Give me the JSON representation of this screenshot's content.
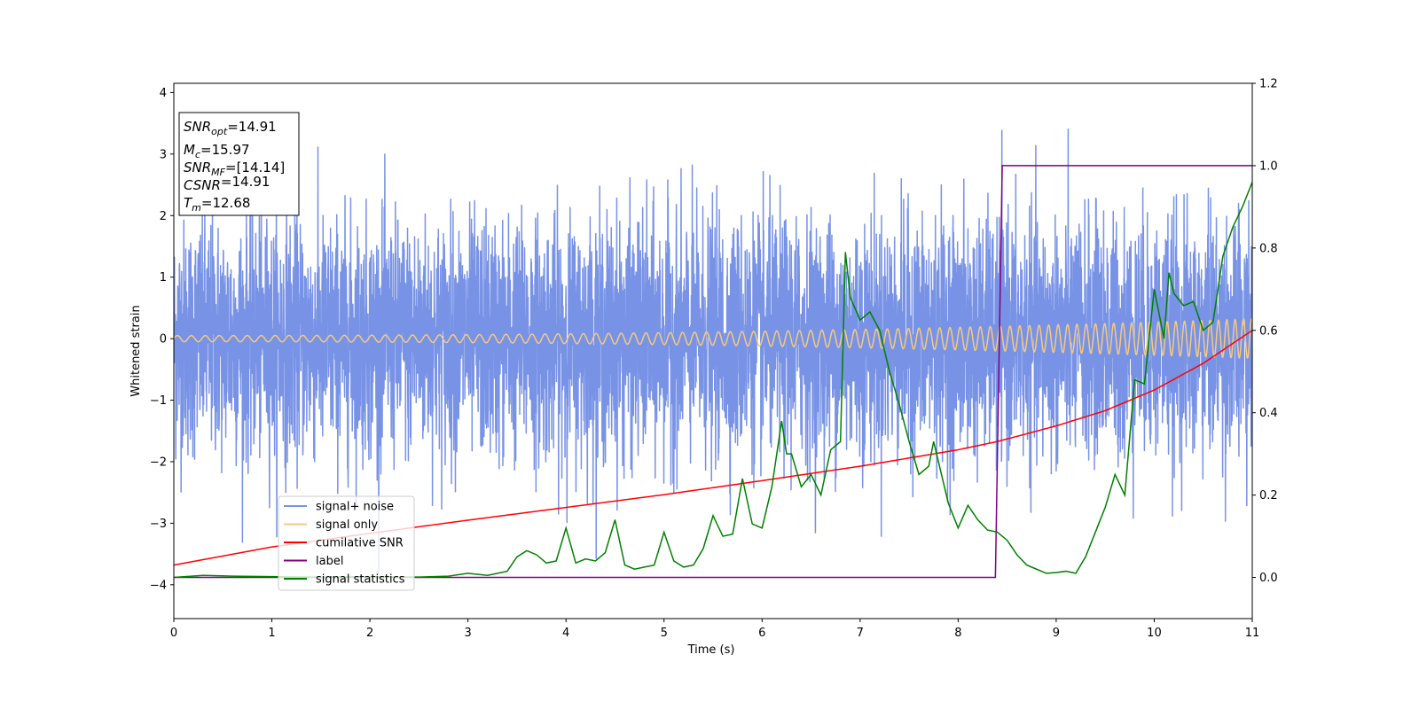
{
  "chart_data": {
    "type": "line",
    "xlabel": "Time (s)",
    "ylabel": "Whitened strain",
    "xlim": [
      0,
      11
    ],
    "ylim": [
      -4.55,
      4.15
    ],
    "ylim_right": [
      -0.1,
      1.2
    ],
    "x_ticks": [
      "0",
      "1",
      "2",
      "3",
      "4",
      "5",
      "6",
      "7",
      "8",
      "9",
      "10",
      "11"
    ],
    "y_ticks": [
      "4",
      "3",
      "2",
      "1",
      "0",
      "−1",
      "−2",
      "−3",
      "−4"
    ],
    "y_ticks_right": [
      "1.2",
      "1.0",
      "0.8",
      "0.6",
      "0.4",
      "0.2",
      "0.0"
    ],
    "grid": false,
    "legend_position": "lower-left",
    "annotation": {
      "lines": [
        {
          "base": "SNR",
          "sub": "opt",
          "value": "=14.91"
        },
        {
          "base": "M",
          "sub": "c",
          "value": "=15.97"
        },
        {
          "base": "SNR",
          "sub": "MF",
          "value": "=[14.14]"
        },
        {
          "base": "CSNR",
          "sub": "",
          "value": "=14.91"
        },
        {
          "base": "T",
          "sub": "m",
          "value": "=12.68"
        }
      ]
    },
    "series": [
      {
        "name": "signal+ noise",
        "color": "#7893e6",
        "axis": "left",
        "kind": "noise",
        "approx_std": 0.95,
        "approx_range": [
          -4.15,
          3.75
        ]
      },
      {
        "name": "signal only",
        "color": "#f6c97d",
        "axis": "left",
        "kind": "chirp",
        "amplitude_start": 0.05,
        "amplitude_end": 0.32
      },
      {
        "name": "cumilative SNR",
        "color": "#ff0000",
        "axis": "right",
        "x": [
          0,
          1,
          2,
          3,
          4,
          5,
          6,
          7,
          8,
          8.4,
          9,
          9.5,
          10,
          10.5,
          11
        ],
        "y": [
          0.03,
          0.074,
          0.107,
          0.139,
          0.17,
          0.201,
          0.235,
          0.27,
          0.31,
          0.33,
          0.368,
          0.405,
          0.455,
          0.52,
          0.6
        ]
      },
      {
        "name": "label",
        "color": "#800080",
        "axis": "right",
        "x": [
          0,
          8.38,
          8.45,
          11
        ],
        "y": [
          0,
          0,
          1,
          1
        ]
      },
      {
        "name": "signal statistics",
        "color": "#008000",
        "axis": "right",
        "x": [
          0,
          0.3,
          0.6,
          1,
          1.5,
          2,
          2.5,
          2.8,
          3,
          3.2,
          3.4,
          3.5,
          3.6,
          3.7,
          3.8,
          3.9,
          4,
          4.1,
          4.2,
          4.3,
          4.4,
          4.5,
          4.6,
          4.7,
          4.8,
          4.9,
          5,
          5.1,
          5.2,
          5.3,
          5.4,
          5.5,
          5.6,
          5.7,
          5.8,
          5.9,
          6,
          6.1,
          6.2,
          6.25,
          6.3,
          6.4,
          6.5,
          6.6,
          6.7,
          6.8,
          6.85,
          6.9,
          7,
          7.1,
          7.2,
          7.3,
          7.4,
          7.5,
          7.6,
          7.7,
          7.75,
          7.8,
          7.9,
          8,
          8.1,
          8.2,
          8.3,
          8.4,
          8.5,
          8.6,
          8.7,
          8.8,
          8.9,
          9,
          9.1,
          9.2,
          9.3,
          9.4,
          9.5,
          9.6,
          9.7,
          9.8,
          9.9,
          10,
          10.1,
          10.15,
          10.2,
          10.3,
          10.4,
          10.5,
          10.6,
          10.7,
          10.8,
          10.9,
          11
        ],
        "y": [
          0,
          0.005,
          0.003,
          0.002,
          0.001,
          0.002,
          0.001,
          0.003,
          0.01,
          0.005,
          0.015,
          0.05,
          0.065,
          0.055,
          0.035,
          0.04,
          0.12,
          0.035,
          0.045,
          0.04,
          0.06,
          0.14,
          0.03,
          0.02,
          0.025,
          0.03,
          0.11,
          0.04,
          0.025,
          0.03,
          0.07,
          0.15,
          0.1,
          0.105,
          0.24,
          0.13,
          0.12,
          0.22,
          0.38,
          0.3,
          0.3,
          0.22,
          0.25,
          0.2,
          0.31,
          0.33,
          0.79,
          0.68,
          0.625,
          0.645,
          0.6,
          0.5,
          0.42,
          0.33,
          0.25,
          0.27,
          0.33,
          0.28,
          0.18,
          0.12,
          0.175,
          0.14,
          0.115,
          0.11,
          0.09,
          0.055,
          0.03,
          0.02,
          0.01,
          0.012,
          0.015,
          0.01,
          0.05,
          0.11,
          0.17,
          0.25,
          0.2,
          0.48,
          0.47,
          0.7,
          0.58,
          0.74,
          0.69,
          0.66,
          0.67,
          0.6,
          0.62,
          0.78,
          0.85,
          0.9,
          0.96
        ]
      }
    ]
  }
}
